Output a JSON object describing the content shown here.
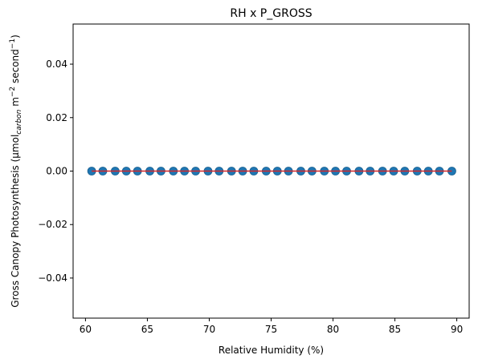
{
  "chart_data": {
    "type": "scatter",
    "title": "RH x P_GROSS",
    "xlabel": "Relative Humidity (%)",
    "ylabel": {
      "main": "Gross Canopy Photosynthesis (µmol",
      "sub": "carbon",
      "mid": " m",
      "sup1": "−2",
      "end1": " second",
      "sup2": "−1",
      "end2": ")"
    },
    "xlim": [
      59,
      91
    ],
    "ylim": [
      -0.055,
      0.055
    ],
    "x_ticks": [
      60,
      65,
      70,
      75,
      80,
      85,
      90
    ],
    "y_ticks": [
      0.04,
      0.02,
      0.0,
      -0.02,
      -0.04
    ],
    "x_tick_labels": [
      "60",
      "65",
      "70",
      "75",
      "80",
      "85",
      "90"
    ],
    "y_tick_labels": [
      "0.04",
      "0.02",
      "0.00",
      "−0.02",
      "−0.04"
    ],
    "grid": false,
    "point_color": "#1f77b4",
    "line_color": "#d62728",
    "series": [
      {
        "type": "scatter",
        "x": [
          60.5,
          61.4,
          62.4,
          63.3,
          64.2,
          65.2,
          66.1,
          67.1,
          68.0,
          68.9,
          69.9,
          70.8,
          71.8,
          72.7,
          73.6,
          74.6,
          75.5,
          76.4,
          77.4,
          78.3,
          79.3,
          80.2,
          81.1,
          82.1,
          83.0,
          84.0,
          84.9,
          85.8,
          86.8,
          87.7,
          88.6,
          89.6
        ],
        "y": [
          0,
          0,
          0,
          0,
          0,
          0,
          0,
          0,
          0,
          0,
          0,
          0,
          0,
          0,
          0,
          0,
          0,
          0,
          0,
          0,
          0,
          0,
          0,
          0,
          0,
          0,
          0,
          0,
          0,
          0,
          0,
          0
        ]
      },
      {
        "type": "line",
        "x": [
          60.5,
          89.6
        ],
        "y": [
          0,
          0
        ]
      }
    ]
  }
}
